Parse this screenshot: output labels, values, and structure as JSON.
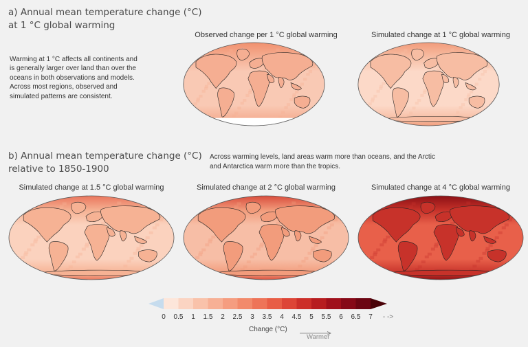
{
  "section_a": {
    "title_line1": "a) Annual mean temperature change (°C)",
    "title_line2": "at 1 °C global warming",
    "description": [
      "Warming at 1 °C affects all continents and",
      "is generally larger over land than over the",
      "oceans in both observations and models.",
      "Across most regions, observed and",
      "simulated patterns are consistent."
    ],
    "maps": [
      {
        "title": "Observed change per 1 °C global warming",
        "base": "#f9c9b4",
        "land": "#f5ae92",
        "polar": "#f08f6d",
        "gaps": true
      },
      {
        "title": "Simulated change at 1 °C global warming",
        "base": "#fcd9c8",
        "land": "#f7bda3",
        "polar": "#f19a79",
        "gaps": false
      }
    ]
  },
  "section_b": {
    "title_line1": "b) Annual mean temperature change (°C)",
    "title_line2": "relative to 1850-1900",
    "description": [
      "Across warming levels, land areas warm more than oceans, and the Arctic",
      "and Antarctica warm more than the tropics."
    ],
    "maps": [
      {
        "title": "Simulated change at 1.5 °C global warming",
        "base": "#fbd2be",
        "land": "#f6b294",
        "polar": "#e9735a",
        "gaps": false
      },
      {
        "title": "Simulated change at 2 °C global warming",
        "base": "#f7bea6",
        "land": "#f29c7c",
        "polar": "#d84a3a",
        "gaps": false
      },
      {
        "title": "Simulated change at 4 °C global warming",
        "base": "#e8604a",
        "land": "#c7322a",
        "polar": "#8a0f14",
        "gaps": false
      }
    ]
  },
  "legend": {
    "ticks": [
      "0",
      "0.5",
      "1",
      "1.5",
      "2",
      "2.5",
      "3",
      "3.5",
      "4",
      "4.5",
      "5",
      "5.5",
      "6",
      "6.5",
      "7"
    ],
    "overflow_symbol": "- ->",
    "title": "Change (°C)",
    "arrow_label": "Warmer",
    "below_color": "#c6dcee",
    "colors": [
      "#fde6da",
      "#fbd4c2",
      "#f9c2aa",
      "#f7b095",
      "#f59d80",
      "#f28a6b",
      "#ee7458",
      "#e85d45",
      "#dd4536",
      "#cc2f29",
      "#b71d20",
      "#a0101b",
      "#860917",
      "#6c0512"
    ]
  }
}
